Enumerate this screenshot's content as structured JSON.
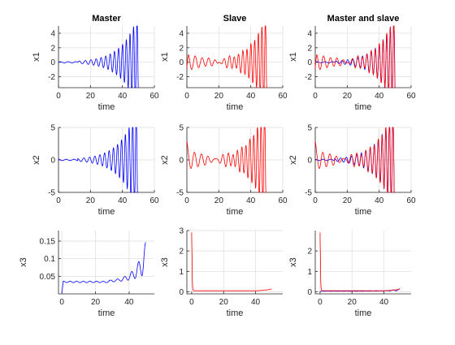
{
  "chart_data": [
    {
      "type": "line",
      "title": "Master",
      "xlabel": "time",
      "ylabel": "x1",
      "xlim": [
        0,
        60
      ],
      "ylim": [
        -3.5,
        5
      ],
      "xticks": [
        0,
        20,
        40,
        60
      ],
      "yticks": [
        -2,
        0,
        2,
        4
      ],
      "series": [
        {
          "color": "#0000ff",
          "signal": "x1",
          "t_end": 50
        }
      ]
    },
    {
      "type": "line",
      "title": "Slave",
      "xlabel": "time",
      "ylabel": "x1",
      "xlim": [
        0,
        60
      ],
      "ylim": [
        -3.5,
        5
      ],
      "xticks": [
        0,
        20,
        40,
        60
      ],
      "yticks": [
        -2,
        0,
        2,
        4
      ],
      "series": [
        {
          "color": "#ff0000",
          "signal": "x1s",
          "t_end": 50
        }
      ]
    },
    {
      "type": "line",
      "title": "Master and slave",
      "xlabel": "time",
      "ylabel": "x1",
      "xlim": [
        0,
        60
      ],
      "ylim": [
        -3.5,
        5
      ],
      "xticks": [
        0,
        20,
        40,
        60
      ],
      "yticks": [
        -2,
        0,
        2,
        4
      ],
      "series": [
        {
          "color": "#0000ff",
          "signal": "x1",
          "t_end": 50
        },
        {
          "color": "#ff0000",
          "signal": "x1s",
          "t_end": 50
        }
      ]
    },
    {
      "type": "line",
      "title": "",
      "xlabel": "time",
      "ylabel": "x2",
      "xlim": [
        0,
        60
      ],
      "ylim": [
        -5,
        5
      ],
      "xticks": [
        0,
        20,
        40,
        60
      ],
      "yticks": [
        -5,
        0,
        5
      ],
      "series": [
        {
          "color": "#0000ff",
          "signal": "x2",
          "t_end": 50
        }
      ]
    },
    {
      "type": "line",
      "title": "",
      "xlabel": "time",
      "ylabel": "x2",
      "xlim": [
        0,
        60
      ],
      "ylim": [
        -5,
        5
      ],
      "xticks": [
        0,
        20,
        40,
        60
      ],
      "yticks": [
        -5,
        0,
        5
      ],
      "series": [
        {
          "color": "#ff0000",
          "signal": "x2s",
          "t_end": 50
        }
      ]
    },
    {
      "type": "line",
      "title": "",
      "xlabel": "time",
      "ylabel": "x2",
      "xlim": [
        0,
        60
      ],
      "ylim": [
        -5,
        5
      ],
      "xticks": [
        0,
        20,
        40,
        60
      ],
      "yticks": [
        -5,
        0,
        5
      ],
      "series": [
        {
          "color": "#0000ff",
          "signal": "x2",
          "t_end": 50
        },
        {
          "color": "#ff0000",
          "signal": "x2s",
          "t_end": 50
        }
      ]
    },
    {
      "type": "line",
      "title": "",
      "xlabel": "time",
      "ylabel": "x3",
      "xlim": [
        -2,
        55
      ],
      "ylim": [
        0,
        0.18
      ],
      "xticks": [
        0,
        20,
        40
      ],
      "yticks": [
        0.05,
        0.1,
        0.15
      ],
      "series": [
        {
          "color": "#0000ff",
          "signal": "x3",
          "t_end": 50
        }
      ]
    },
    {
      "type": "line",
      "title": "",
      "xlabel": "time",
      "ylabel": "x3",
      "xlim": [
        -3,
        57
      ],
      "ylim": [
        -0.1,
        3.0
      ],
      "xticks": [
        0,
        20,
        40
      ],
      "yticks": [
        0,
        1,
        2,
        3
      ],
      "series": [
        {
          "color": "#ff0000",
          "signal": "x3s",
          "t_end": 50
        }
      ]
    },
    {
      "type": "line",
      "title": "",
      "xlabel": "time",
      "ylabel": "x3",
      "xlim": [
        -3,
        57
      ],
      "ylim": [
        -0.1,
        3.0
      ],
      "xticks": [
        0,
        20,
        40
      ],
      "yticks": [
        0,
        1,
        2
      ],
      "series": [
        {
          "color": "#0000ff",
          "signal": "x3",
          "t_end": 50
        },
        {
          "color": "#ff0000",
          "signal": "x3s",
          "t_end": 50
        }
      ]
    }
  ]
}
